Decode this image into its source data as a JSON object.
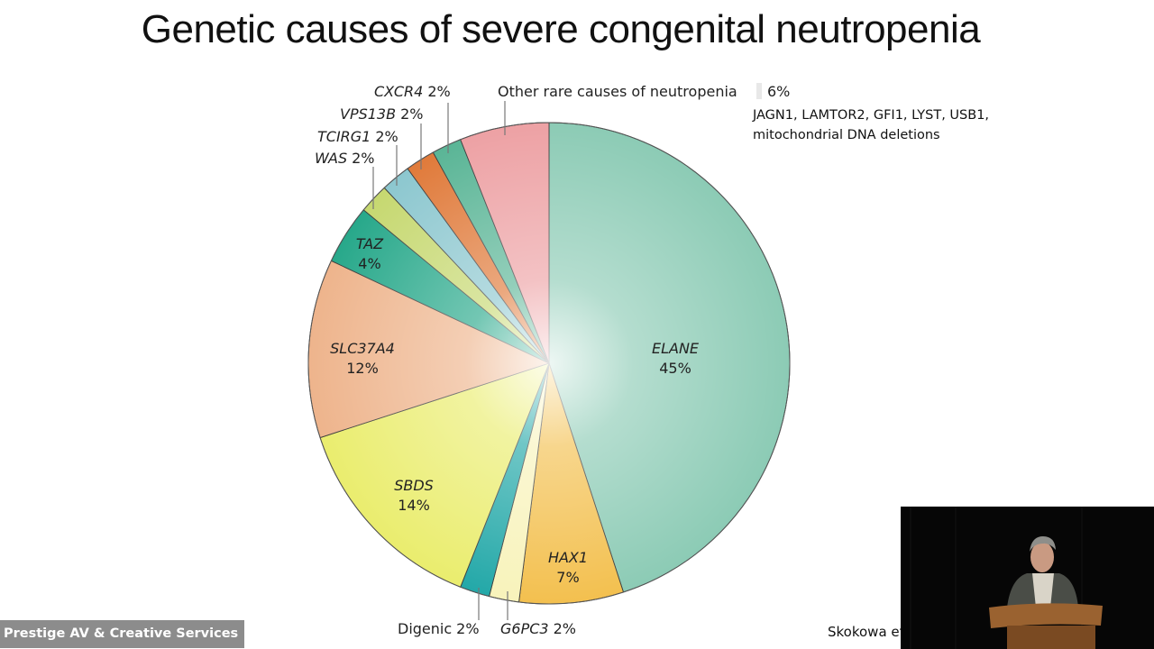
{
  "slide": {
    "title": "Genetic causes of severe congenital neutropenia",
    "citation": "Skokowa et",
    "note_lines": [
      "JAGN1, LAMTOR2, GFI1, LYST, USB1,",
      "mitochondrial DNA deletions"
    ]
  },
  "overlay": {
    "credit": "Prestige AV & Creative Services",
    "video_inset": "speaker-at-podium"
  },
  "chart_data": {
    "type": "pie",
    "title": "Genetic causes of severe congenital neutropenia",
    "start_angle": "12 o'clock",
    "direction": "clockwise",
    "categories": [
      "ELANE",
      "HAX1",
      "G6PC3",
      "Digenic",
      "SBDS",
      "SLC37A4",
      "TAZ",
      "WAS",
      "TCIRG1",
      "VPS13B",
      "CXCR4",
      "Other rare causes of neutropenia"
    ],
    "values": [
      45,
      7,
      2,
      2,
      14,
      12,
      4,
      2,
      2,
      2,
      2,
      6
    ],
    "unit": "%",
    "colors": [
      "#8ccbb5",
      "#f3c04f",
      "#f8f3bb",
      "#23a8a8",
      "#eaed6e",
      "#eeb48c",
      "#27a88a",
      "#c6d870",
      "#8cc7cf",
      "#e07a3a",
      "#5ab596",
      "#eda1a4"
    ],
    "slice_labels": [
      {
        "name": "ELANE",
        "pct": "45%",
        "italic": true,
        "inside": true
      },
      {
        "name": "HAX1",
        "pct": "7%",
        "italic": true,
        "inside": true
      },
      {
        "name": "G6PC3",
        "pct": "2%",
        "italic": true,
        "inside": false
      },
      {
        "name": "Digenic",
        "pct": "2%",
        "italic": false,
        "inside": false
      },
      {
        "name": "SBDS",
        "pct": "14%",
        "italic": true,
        "inside": true
      },
      {
        "name": "SLC37A4",
        "pct": "12%",
        "italic": true,
        "inside": true
      },
      {
        "name": "TAZ",
        "pct": "4%",
        "italic": true,
        "inside": true
      },
      {
        "name": "WAS",
        "pct": "2%",
        "italic": true,
        "inside": false
      },
      {
        "name": "TCIRG1",
        "pct": "2%",
        "italic": true,
        "inside": false
      },
      {
        "name": "VPS13B",
        "pct": "2%",
        "italic": true,
        "inside": false
      },
      {
        "name": "CXCR4",
        "pct": "2%",
        "italic": true,
        "inside": false
      },
      {
        "name": "Other rare causes of neutropenia",
        "pct": "6%",
        "italic": false,
        "inside": false
      }
    ],
    "annotation": "JAGN1, LAMTOR2, GFI1, LYST, USB1, mitochondrial DNA deletions",
    "legend": "none (direct labels)"
  }
}
